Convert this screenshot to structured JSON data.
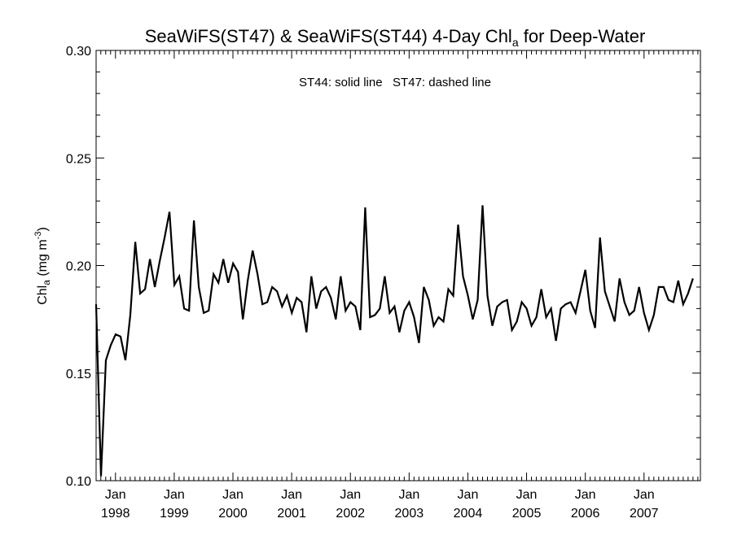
{
  "chart_data": {
    "type": "line",
    "title": {
      "main": "SeaWiFS(ST47) & SeaWiFS(ST44) 4-Day Chl",
      "subscript": "a",
      "suffix": " for Deep-Water"
    },
    "annotation": "ST44: solid line   ST47: dashed line",
    "ylabel": {
      "main": "Chl",
      "subscript": "a",
      "unit_pre": " (mg m",
      "unit_sup": "-3",
      "unit_post": ")"
    },
    "ylim": [
      0.1,
      0.3
    ],
    "xlim": [
      1997.67,
      2007.96
    ],
    "y_ticks": [
      {
        "value": 0.1,
        "label": "0.10"
      },
      {
        "value": 0.15,
        "label": "0.15"
      },
      {
        "value": 0.2,
        "label": "0.20"
      },
      {
        "value": 0.25,
        "label": "0.25"
      },
      {
        "value": 0.3,
        "label": "0.30"
      }
    ],
    "x_ticks": [
      {
        "value": 1998,
        "month": "Jan",
        "year": "1998"
      },
      {
        "value": 1999,
        "month": "Jan",
        "year": "1999"
      },
      {
        "value": 2000,
        "month": "Jan",
        "year": "2000"
      },
      {
        "value": 2001,
        "month": "Jan",
        "year": "2001"
      },
      {
        "value": 2002,
        "month": "Jan",
        "year": "2002"
      },
      {
        "value": 2003,
        "month": "Jan",
        "year": "2003"
      },
      {
        "value": 2004,
        "month": "Jan",
        "year": "2004"
      },
      {
        "value": 2005,
        "month": "Jan",
        "year": "2005"
      },
      {
        "value": 2006,
        "month": "Jan",
        "year": "2006"
      },
      {
        "value": 2007,
        "month": "Jan",
        "year": "2007"
      }
    ],
    "series": [
      {
        "line_style": "solid",
        "color": "#000000",
        "x_start": 1997.67,
        "x_step": 0.0833,
        "values": [
          0.182,
          0.102,
          0.156,
          0.163,
          0.168,
          0.167,
          0.156,
          0.177,
          0.211,
          0.187,
          0.189,
          0.203,
          0.19,
          0.202,
          0.213,
          0.225,
          0.191,
          0.195,
          0.18,
          0.179,
          0.221,
          0.19,
          0.178,
          0.179,
          0.196,
          0.192,
          0.203,
          0.192,
          0.201,
          0.197,
          0.175,
          0.193,
          0.207,
          0.196,
          0.182,
          0.183,
          0.19,
          0.188,
          0.181,
          0.186,
          0.178,
          0.185,
          0.183,
          0.169,
          0.195,
          0.18,
          0.188,
          0.19,
          0.185,
          0.175,
          0.195,
          0.179,
          0.183,
          0.181,
          0.17,
          0.227,
          0.176,
          0.177,
          0.18,
          0.195,
          0.178,
          0.181,
          0.169,
          0.179,
          0.183,
          0.176,
          0.164,
          0.19,
          0.184,
          0.172,
          0.176,
          0.174,
          0.189,
          0.186,
          0.219,
          0.195,
          0.186,
          0.175,
          0.184,
          0.228,
          0.186,
          0.172,
          0.181,
          0.183,
          0.184,
          0.17,
          0.174,
          0.183,
          0.18,
          0.172,
          0.176,
          0.189,
          0.176,
          0.18,
          0.165,
          0.18,
          0.182,
          0.183,
          0.178,
          0.188,
          0.198,
          0.179,
          0.171,
          0.213,
          0.188,
          0.181,
          0.174,
          0.194,
          0.183,
          0.177,
          0.179,
          0.19,
          0.178,
          0.17,
          0.177,
          0.19,
          0.19,
          0.184,
          0.183,
          0.193,
          0.182,
          0.187,
          0.194
        ]
      }
    ]
  }
}
